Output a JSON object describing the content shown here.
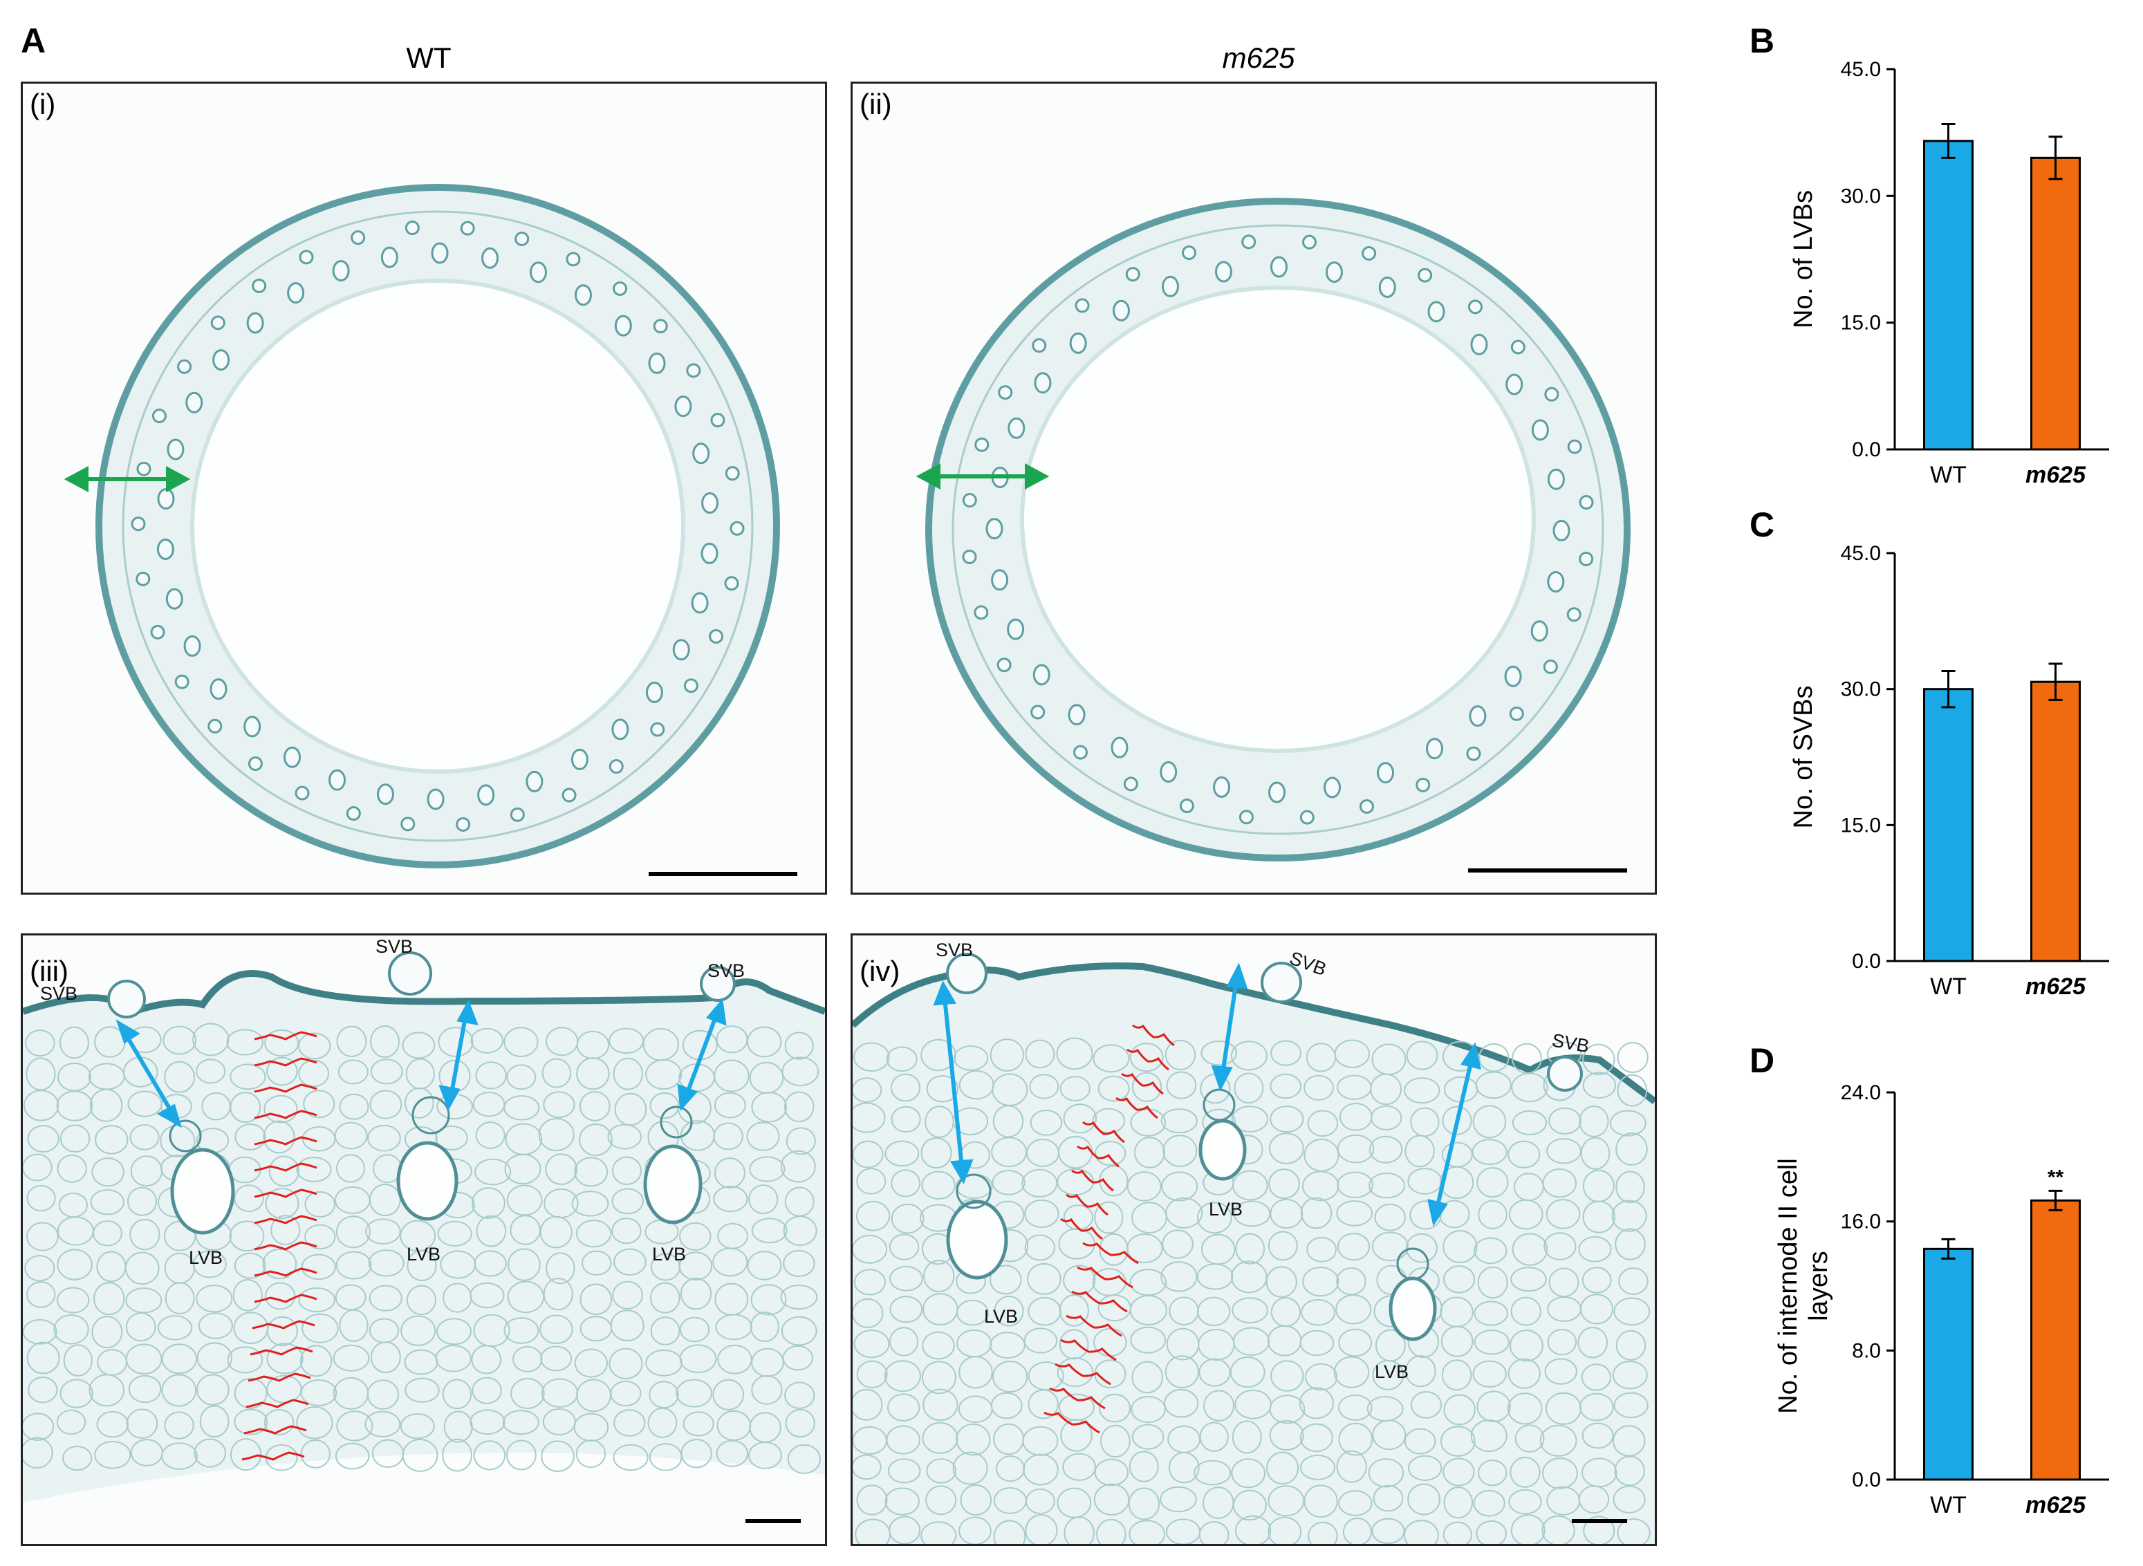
{
  "panels": {
    "A": {
      "letter": "A",
      "wt_title": "WT",
      "mutant_title": "m625"
    },
    "i": {
      "label": "(i)"
    },
    "ii": {
      "label": "(ii)"
    },
    "iii": {
      "label": "(iii)"
    },
    "iv": {
      "label": "(iv)"
    },
    "B": {
      "letter": "B"
    },
    "C": {
      "letter": "C"
    },
    "D": {
      "letter": "D"
    }
  },
  "labels": {
    "svb": "SVB",
    "lvb": "LVB"
  },
  "colors": {
    "stain": "#5e9ea3",
    "stain_light": "#cfe3e3",
    "double_arrow_green": "#1aa650",
    "double_arrow_blue": "#1aa9e6",
    "cell_layer_lines": "#e0201c",
    "wt_bar": "#1aa9e6",
    "mutant_bar": "#f26a10"
  },
  "chart_data": [
    {
      "panel": "B",
      "type": "bar",
      "categories": [
        "WT",
        "m625"
      ],
      "values": [
        36.5,
        34.5
      ],
      "errors": [
        2.0,
        2.5
      ],
      "ylabel": "No. of LVBs",
      "ylim": [
        0,
        45
      ],
      "yticks": [
        "0.0",
        "15.0",
        "30.0",
        "45.0"
      ],
      "significance": [
        "",
        ""
      ]
    },
    {
      "panel": "C",
      "type": "bar",
      "categories": [
        "WT",
        "m625"
      ],
      "values": [
        30.0,
        30.8
      ],
      "errors": [
        2.0,
        2.0
      ],
      "ylabel": "No. of SVBs",
      "ylim": [
        0,
        45
      ],
      "yticks": [
        "0.0",
        "15.0",
        "30.0",
        "45.0"
      ],
      "significance": [
        "",
        ""
      ]
    },
    {
      "panel": "D",
      "type": "bar",
      "categories": [
        "WT",
        "m625"
      ],
      "values": [
        14.3,
        17.3
      ],
      "errors": [
        0.6,
        0.6
      ],
      "ylabel": "No. of internode II cell layers",
      "ylabel_lines": [
        "No. of internode II cell",
        "layers"
      ],
      "ylim": [
        0,
        24
      ],
      "yticks": [
        "0.0",
        "8.0",
        "16.0",
        "24.0"
      ],
      "significance": [
        "",
        "**"
      ]
    }
  ]
}
